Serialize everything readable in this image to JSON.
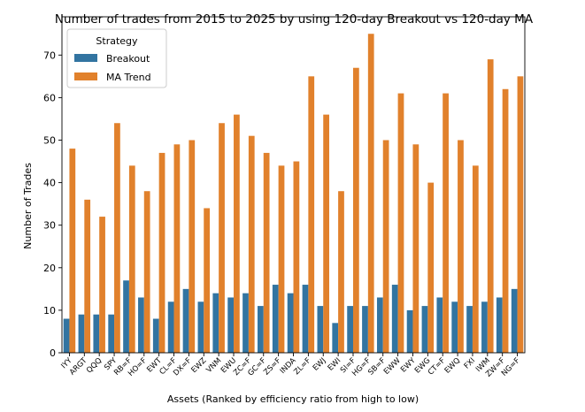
{
  "chart_data": {
    "type": "bar",
    "title": "Number of trades from 2015 to 2025 by using 120-day Breakout vs 120-day MA",
    "xlabel": "Assets (Ranked by efficiency ratio from high to low)",
    "ylabel": "Number of Trades",
    "ylim": [
      0,
      79
    ],
    "yticks": [
      0,
      10,
      20,
      30,
      40,
      50,
      60,
      70
    ],
    "grid": false,
    "legend": {
      "title": "Strategy",
      "placement": "top-left"
    },
    "categories": [
      "IYY",
      "ARGT",
      "QQQ",
      "SPY",
      "RB=F",
      "HO=F",
      "EWT",
      "CL=F",
      "DX=F",
      "EWZ",
      "VNM",
      "EWU",
      "ZC=F",
      "GC=F",
      "ZS=F",
      "INDA",
      "ZL=F",
      "EWJ",
      "EWI",
      "SI=F",
      "HG=F",
      "SB=F",
      "EWW",
      "EWY",
      "EWG",
      "CT=F",
      "EWQ",
      "FXI",
      "IWM",
      "ZW=F",
      "NG=F"
    ],
    "series": [
      {
        "name": "Breakout",
        "color": "#3274a1",
        "values": [
          8,
          9,
          9,
          9,
          17,
          13,
          8,
          12,
          15,
          12,
          14,
          13,
          14,
          11,
          16,
          14,
          16,
          11,
          7,
          11,
          11,
          13,
          16,
          10,
          11,
          13,
          12,
          11,
          12,
          13,
          15
        ]
      },
      {
        "name": "MA Trend",
        "color": "#e1812c",
        "values": [
          48,
          36,
          32,
          54,
          44,
          38,
          47,
          49,
          50,
          34,
          54,
          56,
          51,
          47,
          44,
          45,
          65,
          56,
          38,
          67,
          75,
          50,
          61,
          49,
          40,
          61,
          50,
          44,
          69,
          62,
          65
        ]
      }
    ]
  }
}
